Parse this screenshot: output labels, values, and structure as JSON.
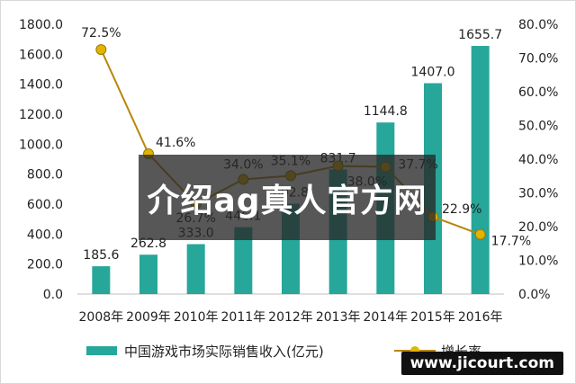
{
  "chart_data": {
    "type": "bar",
    "categories": [
      "2008年",
      "2009年",
      "2010年",
      "2011年",
      "2012年",
      "2013年",
      "2014年",
      "2015年",
      "2016年"
    ],
    "series": [
      {
        "name": "中国游戏市场实际销售收入(亿元)",
        "type": "bar",
        "axis": "left",
        "values": [
          185.6,
          262.8,
          333.0,
          446.1,
          602.8,
          831.7,
          1144.8,
          1407.0,
          1655.7
        ],
        "labels": [
          "185.6",
          "262.8",
          "333.0",
          "446.1",
          "602.8",
          "831.7",
          "1144.8",
          "1407.0",
          "1655.7"
        ],
        "color": "#26a79a"
      },
      {
        "name": "增长率",
        "type": "line",
        "axis": "right",
        "values": [
          72.5,
          41.6,
          26.7,
          34.0,
          35.1,
          38.0,
          37.7,
          22.9,
          17.7
        ],
        "labels": [
          "72.5%",
          "41.6%",
          "26.7%",
          "34.0%",
          "35.1%",
          "38.0%",
          "37.7%",
          "22.9%",
          "17.7%"
        ],
        "color": "#b8860b",
        "marker_color": "#e0b400"
      }
    ],
    "y_left": {
      "ylim": [
        0,
        1800
      ],
      "ticks": [
        "0.0",
        "200.0",
        "400.0",
        "600.0",
        "800.0",
        "1000.0",
        "1200.0",
        "1400.0",
        "1600.0",
        "1800.0"
      ]
    },
    "y_right": {
      "ylim": [
        0,
        80
      ],
      "ticks": [
        "0.0%",
        "10.0%",
        "20.0%",
        "30.0%",
        "40.0%",
        "50.0%",
        "60.0%",
        "70.0%",
        "80.0%"
      ]
    },
    "grid": false,
    "legend": "bottom"
  },
  "overlay": {
    "title": "介绍ag真人官方网",
    "site": "www.jicourt.com"
  }
}
